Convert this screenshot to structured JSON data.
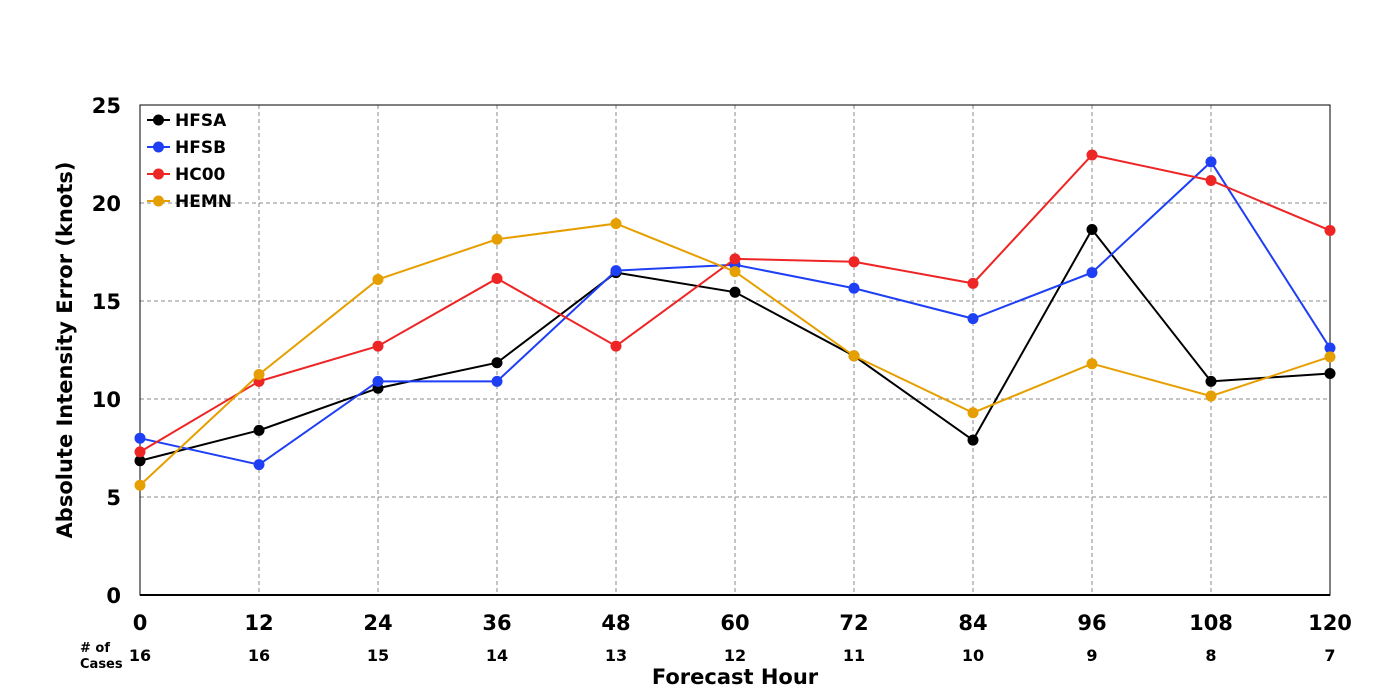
{
  "chart_data": {
    "type": "line",
    "title": "",
    "xlabel": "Forecast Hour",
    "ylabel": "Absolute Intensity Error (knots)",
    "x": [
      0,
      12,
      24,
      36,
      48,
      60,
      72,
      84,
      96,
      108,
      120
    ],
    "xlim": [
      0,
      120
    ],
    "ylim": [
      0,
      25
    ],
    "yticks": [
      0,
      5,
      10,
      15,
      20,
      25
    ],
    "grid": true,
    "legend_position": "top-left",
    "cases_label_line1": "# of",
    "cases_label_line2": "Cases",
    "cases": [
      16,
      16,
      15,
      14,
      13,
      12,
      11,
      10,
      9,
      8,
      7
    ],
    "series": [
      {
        "name": "HFSA",
        "color": "#000000",
        "values": [
          6.85,
          8.4,
          10.55,
          11.85,
          16.45,
          15.45,
          12.2,
          7.9,
          18.65,
          10.9,
          11.3
        ]
      },
      {
        "name": "HFSB",
        "color": "#1f3ff5",
        "values": [
          8.0,
          6.65,
          10.9,
          10.9,
          16.55,
          16.85,
          15.65,
          14.1,
          16.45,
          22.1,
          12.6
        ]
      },
      {
        "name": "HC00",
        "color": "#ee2525",
        "values": [
          7.3,
          10.9,
          12.7,
          16.15,
          12.7,
          17.15,
          17.0,
          15.9,
          22.45,
          21.15,
          18.6
        ]
      },
      {
        "name": "HEMN",
        "color": "#e69f00",
        "values": [
          5.6,
          11.25,
          16.1,
          18.15,
          18.95,
          16.5,
          12.2,
          9.3,
          11.8,
          10.15,
          12.15
        ]
      }
    ]
  }
}
